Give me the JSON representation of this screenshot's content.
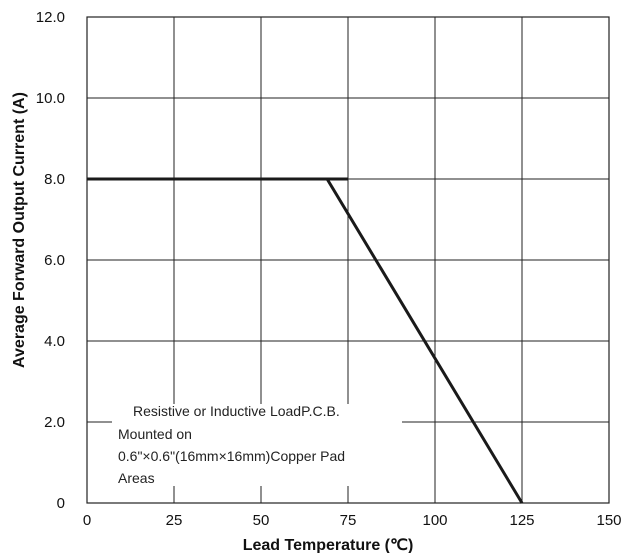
{
  "chart_data": {
    "type": "line",
    "title": "",
    "xlabel": "Lead Temperature (℃)",
    "ylabel": "Average Forward Output Current (A)",
    "xlim": [
      0,
      150
    ],
    "ylim": [
      0,
      12
    ],
    "x_ticks": [
      0,
      25,
      50,
      75,
      100,
      125,
      150
    ],
    "y_ticks": [
      0,
      2,
      4,
      6,
      8,
      10,
      12
    ],
    "x_tick_labels": [
      "0",
      "25",
      "50",
      "75",
      "100",
      "125",
      "150"
    ],
    "y_tick_labels": [
      "0",
      "2.0",
      "4.0",
      "6.0",
      "8.0",
      "10.0",
      "12.0"
    ],
    "grid": true,
    "series": [
      {
        "color": "#1a1a1a",
        "points": [
          [
            0,
            8.0
          ],
          [
            69,
            8.0
          ],
          [
            125,
            0
          ]
        ]
      }
    ],
    "extra_segment": {
      "from": [
        69,
        8.0
      ],
      "to": [
        75,
        8.0
      ]
    },
    "annotation_lines": [
      "Resistive or Inductive LoadP.C.B.",
      "Mounted on",
      "0.6\"×0.6\"(16mm×16mm)Copper Pad",
      "Areas"
    ]
  }
}
